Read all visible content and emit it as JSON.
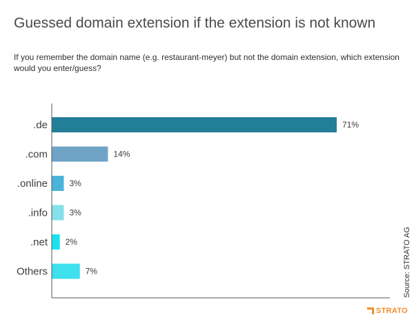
{
  "title": "Guessed domain extension if the extension is not known",
  "subtitle": "If you remember the domain name (e.g. restaurant-meyer) but not the domain extension, which extension would you enter/guess?",
  "source": "Source: STRATO AG",
  "logo": {
    "text": "STRATO",
    "color": "#f28c28"
  },
  "chart_data": {
    "type": "bar",
    "orientation": "horizontal",
    "title": "Guessed domain extension if the extension is not known",
    "categories": [
      ".de",
      ".com",
      ".online",
      ".info",
      ".net",
      "Others"
    ],
    "values": [
      71,
      14,
      3,
      3,
      2,
      7
    ],
    "labels": [
      "71%",
      "14%",
      "3%",
      "3%",
      "2%",
      "7%"
    ],
    "colors": [
      "#237e97",
      "#6fa4c7",
      "#4ab3d9",
      "#86e0ea",
      "#18e2ee",
      "#3ee0ee"
    ],
    "xlim": [
      0,
      100
    ],
    "grid": false,
    "legend": "none"
  }
}
